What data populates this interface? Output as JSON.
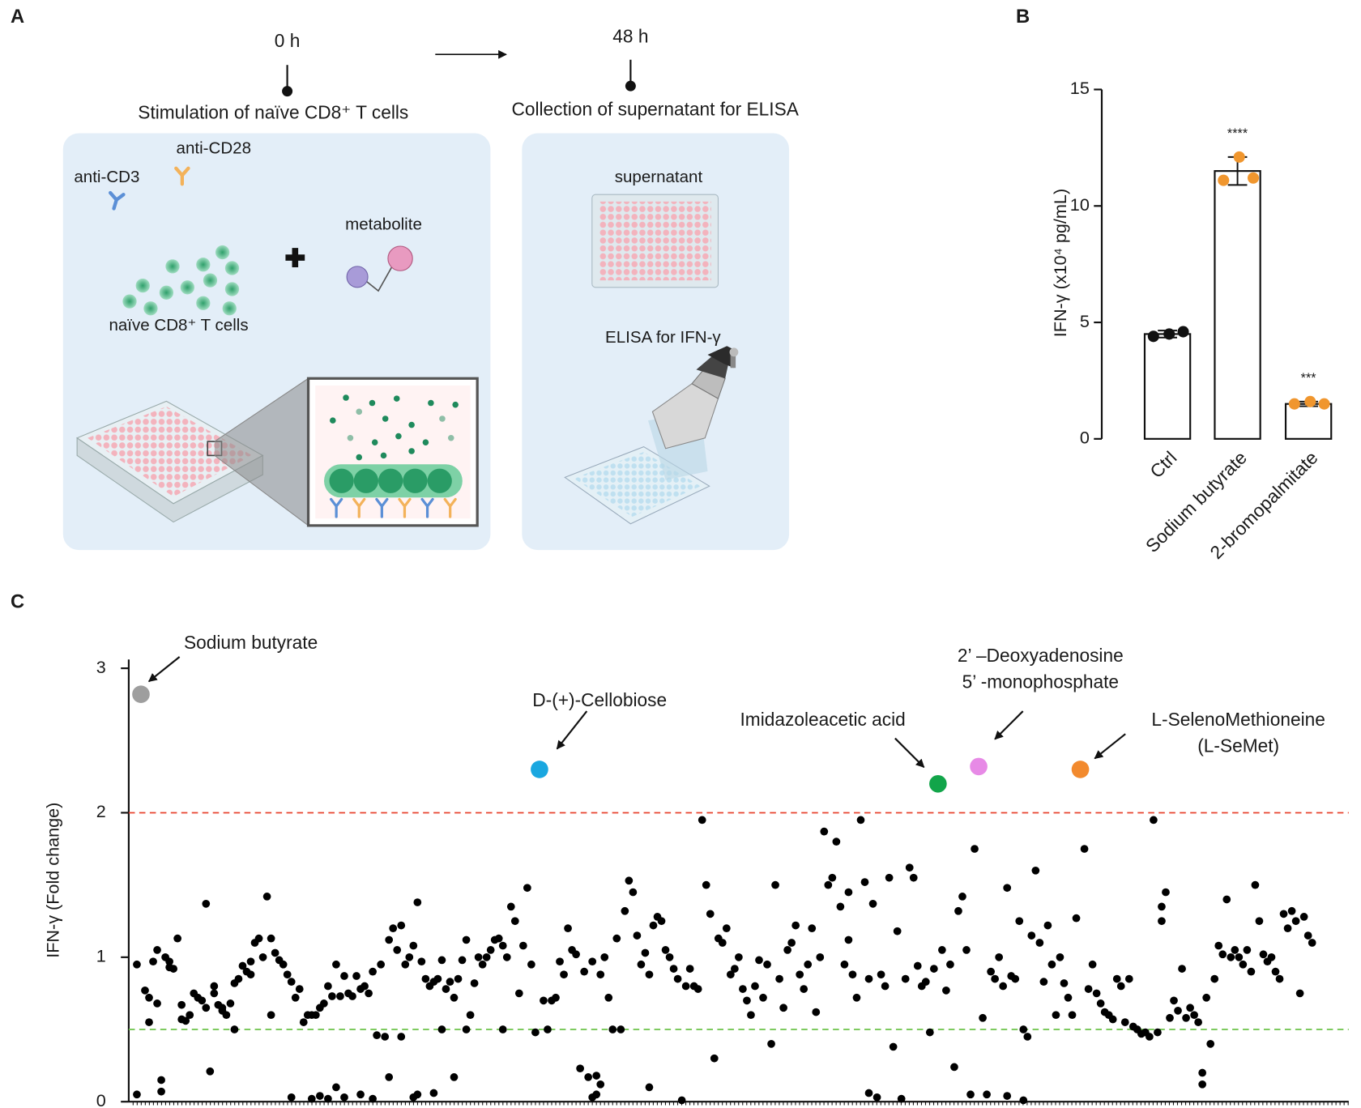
{
  "panel_labels": [
    "A",
    "B",
    "C"
  ],
  "diagram": {
    "timeline": [
      {
        "time": "0 h",
        "step": "Stimulation of naïve CD8⁺ T cells"
      },
      {
        "time": "48 h",
        "step": "Collection of supernatant for ELISA"
      }
    ],
    "stimulation": {
      "antibodies": [
        "anti-CD3",
        "anti-CD28"
      ],
      "metabolite": "metabolite",
      "cells": "naïve CD8⁺ T cells"
    },
    "collection": {
      "supernatant": "supernatant",
      "elisa": "ELISA for IFN-γ"
    }
  },
  "chart_data": [
    {
      "type": "bar",
      "ylabel": "IFN-γ (x10⁴ pg/mL)",
      "categories": [
        "Ctrl",
        "Sodium butyrate",
        "2-bromopalmitate"
      ],
      "values": [
        4.5,
        11.5,
        1.5
      ],
      "errors": [
        0.15,
        0.6,
        0.1
      ],
      "points": [
        [
          4.4,
          4.5,
          4.6
        ],
        [
          11.1,
          12.1,
          11.2
        ],
        [
          1.5,
          1.6,
          1.5
        ]
      ],
      "point_colors": [
        "#111111",
        "#f0962e",
        "#f0962e"
      ],
      "significance": [
        null,
        "****",
        "***"
      ],
      "ylim": [
        0,
        15
      ],
      "yticks": [
        0,
        5,
        10,
        15
      ]
    },
    {
      "type": "scatter",
      "ylabel": "IFN-γ (Fold change)",
      "xlim": [
        0,
        300
      ],
      "ylim": [
        0,
        3
      ],
      "yticks": [
        0,
        1,
        2,
        3
      ],
      "reference_lines": [
        {
          "value": 2,
          "color": "#e8412c"
        },
        {
          "value": 0.5,
          "color": "#6cc24a"
        }
      ],
      "series": [
        {
          "color": "#000000",
          "x": [
            2,
            2,
            4,
            5,
            5,
            6,
            7,
            7,
            8,
            8,
            9,
            10,
            10,
            11,
            12,
            13,
            13,
            14,
            15,
            16,
            17,
            18,
            19,
            19,
            20,
            21,
            21,
            22,
            23,
            23,
            24,
            25,
            26,
            26,
            27,
            28,
            29,
            30,
            30,
            31,
            32,
            33,
            34,
            35,
            35,
            36,
            37,
            38,
            39,
            40,
            40,
            41,
            42,
            43,
            44,
            45,
            45,
            46,
            47,
            47,
            48,
            49,
            49,
            50,
            51,
            51,
            52,
            53,
            53,
            54,
            55,
            56,
            57,
            57,
            58,
            59,
            60,
            60,
            61,
            62,
            63,
            64,
            64,
            65,
            66,
            67,
            67,
            68,
            69,
            70,
            70,
            71,
            71,
            72,
            73,
            74,
            75,
            75,
            76,
            77,
            77,
            78,
            79,
            80,
            80,
            81,
            82,
            83,
            83,
            84,
            85,
            86,
            87,
            88,
            89,
            90,
            91,
            92,
            92,
            93,
            94,
            95,
            96,
            97,
            98,
            99,
            100,
            102,
            103,
            104,
            105,
            106,
            107,
            108,
            109,
            110,
            111,
            112,
            113,
            114,
            114,
            115,
            115,
            116,
            116,
            117,
            118,
            119,
            120,
            121,
            122,
            123,
            124,
            125,
            126,
            127,
            128,
            128,
            129,
            130,
            131,
            132,
            133,
            134,
            135,
            136,
            137,
            138,
            139,
            140,
            141,
            142,
            143,
            144,
            145,
            146,
            147,
            148,
            149,
            150,
            151,
            152,
            153,
            154,
            155,
            156,
            157,
            158,
            159,
            160,
            161,
            162,
            163,
            164,
            165,
            166,
            167,
            168,
            169,
            170,
            171,
            172,
            173,
            174,
            175,
            176,
            177,
            177,
            178,
            179,
            180,
            181,
            182,
            182,
            183,
            184,
            185,
            186,
            187,
            188,
            189,
            190,
            191,
            192,
            193,
            194,
            195,
            196,
            197,
            198,
            200,
            201,
            202,
            203,
            204,
            205,
            206,
            207,
            208,
            210,
            211,
            212,
            213,
            214,
            215,
            216,
            216,
            217,
            218,
            219,
            220,
            220,
            221,
            222,
            223,
            224,
            225,
            226,
            227,
            228,
            229,
            230,
            231,
            232,
            233,
            235,
            236,
            237,
            238,
            239,
            240,
            241,
            242,
            243,
            244,
            245,
            246,
            247,
            248,
            249,
            250,
            251,
            252,
            253,
            254,
            254,
            255,
            256,
            257,
            258,
            259,
            260,
            261,
            262,
            263,
            264,
            264,
            265,
            266,
            267,
            268,
            269,
            270,
            271,
            272,
            273,
            274,
            275,
            276,
            277,
            278,
            279,
            280,
            281,
            282,
            283,
            284,
            285,
            286,
            287,
            288,
            289,
            290,
            291
          ],
          "values": [
            0.95,
            0.05,
            0.77,
            0.72,
            0.55,
            0.97,
            1.05,
            0.68,
            0.15,
            0.07,
            1.0,
            0.93,
            0.97,
            0.92,
            1.13,
            0.57,
            0.67,
            0.56,
            0.6,
            0.75,
            0.72,
            0.7,
            1.37,
            0.65,
            0.21,
            0.8,
            0.75,
            0.67,
            0.63,
            0.65,
            0.6,
            0.68,
            0.82,
            0.5,
            0.85,
            0.94,
            0.9,
            0.97,
            0.88,
            1.1,
            1.13,
            1.0,
            1.42,
            1.13,
            0.6,
            1.03,
            0.98,
            0.95,
            0.88,
            0.83,
            0.03,
            0.72,
            0.78,
            0.55,
            0.6,
            0.6,
            0.02,
            0.6,
            0.65,
            0.04,
            0.68,
            0.8,
            0.02,
            0.73,
            0.95,
            0.1,
            0.73,
            0.87,
            0.03,
            0.75,
            0.73,
            0.87,
            0.78,
            0.05,
            0.8,
            0.75,
            0.9,
            0.02,
            0.46,
            0.95,
            0.45,
            1.12,
            0.17,
            1.2,
            1.05,
            1.22,
            0.45,
            0.95,
            1.0,
            1.08,
            0.03,
            1.38,
            0.05,
            0.97,
            0.85,
            0.8,
            0.83,
            0.06,
            0.85,
            0.98,
            0.5,
            0.78,
            0.83,
            0.72,
            0.17,
            0.85,
            0.98,
            1.12,
            0.5,
            0.6,
            0.82,
            1.0,
            0.95,
            1.0,
            1.05,
            1.12,
            1.13,
            1.08,
            0.5,
            1.0,
            1.35,
            1.25,
            0.75,
            1.08,
            1.48,
            0.95,
            0.48,
            0.7,
            0.5,
            0.7,
            0.72,
            0.97,
            0.88,
            1.2,
            1.05,
            1.02,
            0.23,
            0.9,
            0.17,
            0.97,
            0.03,
            0.05,
            0.18,
            0.88,
            0.12,
            1.0,
            0.72,
            0.5,
            1.13,
            0.5,
            1.32,
            1.53,
            1.45,
            1.15,
            0.95,
            1.03,
            0.88,
            0.1,
            1.22,
            1.28,
            1.25,
            1.05,
            1.0,
            0.92,
            0.85,
            0.01,
            0.8,
            0.92,
            0.8,
            0.78,
            1.95,
            1.5,
            1.3,
            0.3,
            1.13,
            1.1,
            1.2,
            0.88,
            0.92,
            1.0,
            0.78,
            0.7,
            0.6,
            0.8,
            0.98,
            0.72,
            0.95,
            0.4,
            1.5,
            0.85,
            0.65,
            1.05,
            1.1,
            1.22,
            0.88,
            0.78,
            0.95,
            1.2,
            0.62,
            1.0,
            1.87,
            1.5,
            1.55,
            1.8,
            1.35,
            0.95,
            1.12,
            1.45,
            0.88,
            0.72,
            1.95,
            1.52,
            0.06,
            0.85,
            1.37,
            0.03,
            0.88,
            0.8,
            1.55,
            0.38,
            1.18,
            0.02,
            0.85,
            1.62,
            1.55,
            0.94,
            0.8,
            0.83,
            0.48,
            0.92,
            1.05,
            0.77,
            0.95,
            0.24,
            1.32,
            1.42,
            1.05,
            0.05,
            1.75,
            0.58,
            0.05,
            0.9,
            0.85,
            1.0,
            0.8,
            1.48,
            0.04,
            0.87,
            0.85,
            1.25,
            0.5,
            0.01,
            0.45,
            1.15,
            1.6,
            1.1,
            0.83,
            1.22,
            0.95,
            0.6,
            1.0,
            0.82,
            0.72,
            0.6,
            1.27,
            1.75,
            0.78,
            0.95,
            0.75,
            0.68,
            0.62,
            0.6,
            0.57,
            0.85,
            0.8,
            0.55,
            0.85,
            0.52,
            0.5,
            0.47,
            0.48,
            0.45,
            1.95,
            0.48,
            1.35,
            1.25,
            1.45,
            0.58,
            0.7,
            0.63,
            0.92,
            0.58,
            0.65,
            0.6,
            0.55,
            0.2,
            0.12,
            0.72,
            0.4,
            0.85,
            1.08,
            1.02,
            1.4,
            1.0,
            1.05,
            1.0,
            0.95,
            1.05,
            0.9,
            1.5,
            1.25,
            1.02,
            0.97,
            1.0,
            0.9,
            0.85,
            1.3,
            1.2,
            1.32,
            1.25,
            0.75,
            1.28,
            1.15,
            1.1
          ]
        },
        {
          "label": [
            "Sodium butyrate"
          ],
          "color": "#9e9e9e",
          "x": [
            3
          ],
          "values": [
            2.82
          ]
        },
        {
          "label": [
            "D-(+)-Cellobiose"
          ],
          "color": "#1aa7e0",
          "x": [
            101
          ],
          "values": [
            2.3
          ]
        },
        {
          "label": [
            "Imidazoleacetic acid"
          ],
          "color": "#12a54a",
          "x": [
            199
          ],
          "values": [
            2.2
          ]
        },
        {
          "label": [
            "2’ –Deoxyadenosine",
            "5’ -monophosphate"
          ],
          "color": "#e78ae6",
          "x": [
            209
          ],
          "values": [
            2.32
          ]
        },
        {
          "label": [
            "L-SelenoMethioneine",
            "(L-SeMet)"
          ],
          "color": "#f28a2e",
          "x": [
            234
          ],
          "values": [
            2.3
          ]
        }
      ]
    }
  ]
}
